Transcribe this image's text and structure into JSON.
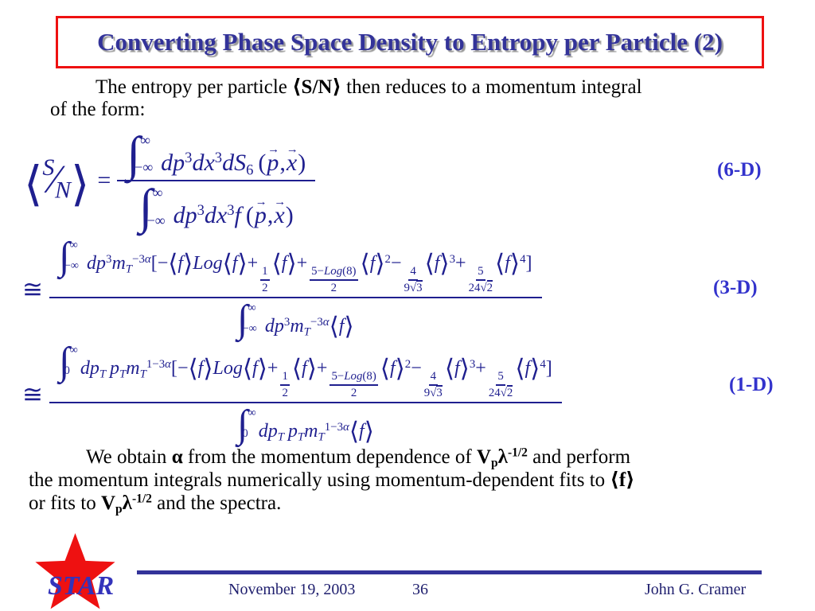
{
  "colors": {
    "title": "#333399",
    "title_shadow": "#9a9a9a",
    "border": "#ee1111",
    "eq": "#1f1f8f",
    "label": "#3333cc",
    "line": "#333399",
    "star": "#ee1111",
    "logo": "#3333bb",
    "footer": "#1f1f6e"
  },
  "title": "Converting Phase Space Density to Entropy per Particle (2)",
  "intro_html": "The entropy per particle <b>⟨S/N⟩</b> then reduces to a momentum integral<br>of the form:",
  "equations": [
    {
      "label": "(6-D)",
      "lhs_html": "<span class='bb'>⟨</span><i class='ov'>S</i><span class='sl'>∕</span><i class='un'>N</i><span class='bb'>⟩</span><span class='rel'>=</span>",
      "num_html": "<span class='int'><span class='isym'>∫</span><span class='lims'><span>∞</span><span class='ll'>−∞</span></span></span><i>dp</i><sup>3</sup><i>dx</i><sup>3</sup><i>dS</i><sub>6</sub>&thinsp;(<span class='vec'><i>p</i></span>,<span class='vec'><i>x</i></span>)",
      "den_html": "<span class='int'><span class='isym'>∫</span><span class='lims'><span>∞</span><span class='ll'>−∞</span></span></span><i>dp</i><sup>3</sup><i>dx</i><sup>3</sup><i>f</i>&thinsp;(<span class='vec'><i>p</i></span>,<span class='vec'><i>x</i></span>)"
    },
    {
      "label": "(3-D)",
      "lhs_html": "<span class='cong'>≅</span>",
      "num_html": "<span class='int'><span class='isym'>∫</span><span class='lims'><span>∞</span><span class='ll'>−∞</span></span></span><i>dp</i><sup>3</sup><i>m</i><sub><i>T</i></sub><sup>−3<i>α</i></sup>[−<span class='ab'>⟨</span><i>f</i><span class='ab'>⟩</span><i>Log</i><span class='ab'>⟨</span><i>f</i><span class='ab'>⟩</span>+<span class='sfrac'><span class='n'>1</span><span class='d'>2</span></span><span class='ab'>⟨</span><i>f</i><span class='ab'>⟩</span>+<span class='sfrac'><span class='n'>5−<i>Log</i>(8)</span><span class='d'>2</span></span><span class='ab'>⟨</span><i>f</i><span class='ab'>⟩</span><sup>2</sup>−<span class='sfrac'><span class='n'>4</span><span class='d'>9<span class='sqrt'>√<span class='r'>3</span></span></span></span><span class='ab'>⟨</span><i>f</i><span class='ab'>⟩</span><sup>3</sup>+<span class='sfrac'><span class='n'>5</span><span class='d'>24<span class='sqrt'>√<span class='r'>2</span></span></span></span><span class='ab'>⟨</span><i>f</i><span class='ab'>⟩</span><sup>4</sup>]",
      "den_html": "<span class='int'><span class='isym'>∫</span><span class='lims'><span>∞</span><span class='ll'>−∞</span></span></span><i>dp</i><sup>3</sup><i>m</i><sub><i>T</i></sub><sup>−3<i>α</i></sup><span class='ab'>⟨</span><i>f</i><span class='ab'>⟩</span>"
    },
    {
      "label": "(1-D)",
      "lhs_html": "<span class='cong'>≅</span>",
      "num_html": "<span class='int'><span class='isym'>∫</span><span class='lims'><span>∞</span><span class='ll'>0</span></span></span><i>dp</i><sub><i>T</i></sub>&thinsp;<i>p</i><sub><i>T</i></sub><i>m</i><sub><i>T</i></sub><sup>1−3<i>α</i></sup>[−<span class='ab'>⟨</span><i>f</i><span class='ab'>⟩</span><i>Log</i><span class='ab'>⟨</span><i>f</i><span class='ab'>⟩</span>+<span class='sfrac'><span class='n'>1</span><span class='d'>2</span></span><span class='ab'>⟨</span><i>f</i><span class='ab'>⟩</span>+<span class='sfrac'><span class='n'>5−<i>Log</i>(8)</span><span class='d'>2</span></span><span class='ab'>⟨</span><i>f</i><span class='ab'>⟩</span><sup>2</sup>−<span class='sfrac'><span class='n'>4</span><span class='d'>9<span class='sqrt'>√<span class='r'>3</span></span></span></span><span class='ab'>⟨</span><i>f</i><span class='ab'>⟩</span><sup>3</sup>+<span class='sfrac'><span class='n'>5</span><span class='d'>24<span class='sqrt'>√<span class='r'>2</span></span></span></span><span class='ab'>⟨</span><i>f</i><span class='ab'>⟩</span><sup>4</sup>]",
      "den_html": "<span class='int'><span class='isym'>∫</span><span class='lims'><span>∞</span><span class='ll'>0</span></span></span><i>dp</i><sub><i>T</i></sub>&thinsp;<i>p</i><sub><i>T</i></sub><i>m</i><sub><i>T</i></sub><sup>1−3<i>α</i></sup><span class='ab'>⟨</span><i>f</i><span class='ab'>⟩</span>"
    }
  ],
  "closing_html": "We obtain <b>α</b> from the momentum dependence of <b>V<sub>p</sub>λ<sup>-1/2</sup></b> and perform<br>the momentum integrals numerically using momentum-dependent fits to <b>⟨f⟩</b><br>or fits to <b>V<sub>p</sub>λ<sup>-1/2</sup></b> and the spectra.",
  "footer": {
    "logo_text": "STAR",
    "date": "November 19, 2003",
    "page_number": "36",
    "author": "John G. Cramer"
  }
}
